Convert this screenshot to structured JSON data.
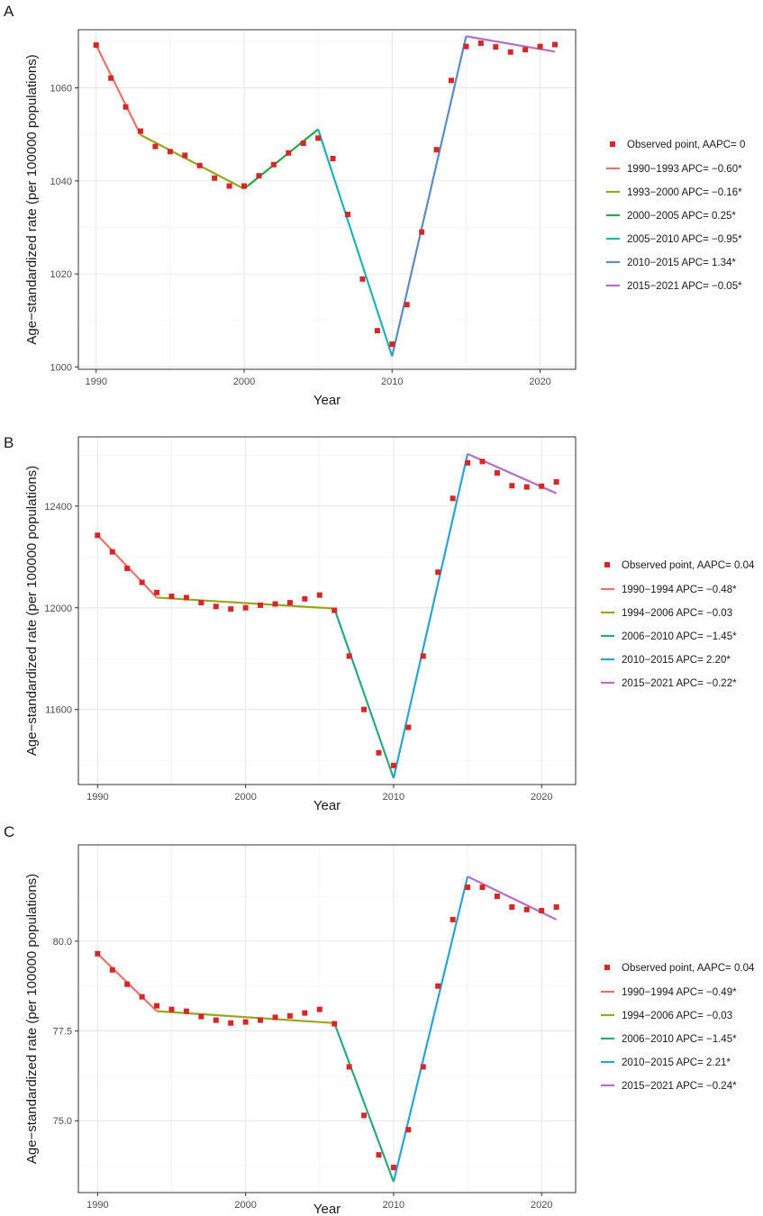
{
  "chart_data": [
    {
      "type": "line",
      "panel": "A",
      "xlabel": "Year",
      "ylabel": "Age−standardized rate (per 100000 populations)",
      "xlim": [
        1988.8,
        2022.4
      ],
      "ylim": [
        999.5,
        1072.5
      ],
      "xticks": [
        1990,
        2000,
        2010,
        2020
      ],
      "xtick_labels": [
        "1990",
        "2000",
        "2010",
        "2020"
      ],
      "yticks": [
        1000,
        1020,
        1040,
        1060
      ],
      "ytick_labels": [
        "1000",
        "1020",
        "1040",
        "1060"
      ],
      "observed": {
        "label": "Observed point, AAPC= 0",
        "color": "#d62728",
        "x": [
          1990,
          1991,
          1992,
          1993,
          1994,
          1995,
          1996,
          1997,
          1998,
          1999,
          2000,
          2001,
          2002,
          2003,
          2004,
          2005,
          2006,
          2007,
          2008,
          2009,
          2010,
          2011,
          2012,
          2013,
          2014,
          2015,
          2016,
          2017,
          2018,
          2019,
          2020,
          2021
        ],
        "y": [
          1069.2,
          1062.1,
          1055.9,
          1050.7,
          1047.4,
          1046.3,
          1045.5,
          1043.3,
          1040.6,
          1038.9,
          1038.9,
          1041.1,
          1043.5,
          1046.0,
          1048.1,
          1049.2,
          1044.8,
          1032.8,
          1018.9,
          1007.8,
          1004.9,
          1013.4,
          1029.0,
          1046.7,
          1061.6,
          1068.9,
          1069.6,
          1068.8,
          1067.7,
          1068.2,
          1068.9,
          1069.3
        ]
      },
      "series": [
        {
          "name": "1990−1993 APC= −0.60*",
          "color": "#e8736b",
          "x": [
            1990,
            1993
          ],
          "y": [
            1069.2,
            1049.9
          ]
        },
        {
          "name": "1993−2000 APC= −0.16*",
          "color": "#9aa521",
          "x": [
            1993,
            2000
          ],
          "y": [
            1049.9,
            1038.3
          ]
        },
        {
          "name": "2000−2005 APC= 0.25*",
          "color": "#2ca44b",
          "x": [
            2000,
            2005
          ],
          "y": [
            1038.3,
            1051.1
          ]
        },
        {
          "name": "2005−2010 APC= −0.95*",
          "color": "#20b3b3",
          "x": [
            2005,
            2010
          ],
          "y": [
            1051.1,
            1002.3
          ]
        },
        {
          "name": "2010−2015 APC= 1.34*",
          "color": "#5b8cc6",
          "x": [
            2010,
            2015
          ],
          "y": [
            1002.3,
            1071.1
          ]
        },
        {
          "name": "2015−2021 APC= −0.05*",
          "color": "#b470c4",
          "x": [
            2015,
            2021
          ],
          "y": [
            1071.1,
            1067.8
          ]
        }
      ]
    },
    {
      "type": "line",
      "panel": "B",
      "xlabel": "Year",
      "ylabel": "Age−standardized rate (per 100000 populations)",
      "xlim": [
        1988.7,
        2022.3
      ],
      "ylim": [
        11305,
        12672
      ],
      "xticks": [
        1990,
        2000,
        2010,
        2020
      ],
      "xtick_labels": [
        "1990",
        "2000",
        "2010",
        "2020"
      ],
      "yticks": [
        11600,
        12000,
        12400
      ],
      "ytick_labels": [
        "11600",
        "12000",
        "12400"
      ],
      "observed": {
        "label": "Observed point, AAPC= 0.04",
        "color": "#d62728",
        "x": [
          1990,
          1991,
          1992,
          1993,
          1994,
          1995,
          1996,
          1997,
          1998,
          1999,
          2000,
          2001,
          2002,
          2003,
          2004,
          2005,
          2006,
          2007,
          2008,
          2009,
          2010,
          2011,
          2012,
          2013,
          2014,
          2015,
          2016,
          2017,
          2018,
          2019,
          2020,
          2021
        ],
        "y": [
          12285,
          12220,
          12155,
          12100,
          12060,
          12045,
          12040,
          12020,
          12005,
          11995,
          12000,
          12010,
          12015,
          12020,
          12035,
          12050,
          11990,
          11810,
          11600,
          11430,
          11380,
          11530,
          11810,
          12140,
          12430,
          12570,
          12575,
          12530,
          12480,
          12475,
          12478,
          12495
        ]
      },
      "series": [
        {
          "name": "1990−1994 APC= −0.48*",
          "color": "#e8736b",
          "x": [
            1990,
            1994
          ],
          "y": [
            12285,
            12040
          ]
        },
        {
          "name": "1994−2006 APC= −0.03",
          "color": "#9aa521",
          "x": [
            1994,
            2006
          ],
          "y": [
            12040,
            11997
          ]
        },
        {
          "name": "2006−2010 APC= −1.45*",
          "color": "#28a97f",
          "x": [
            2006,
            2010
          ],
          "y": [
            11997,
            11330
          ]
        },
        {
          "name": "2010−2015 APC= 2.20*",
          "color": "#2aa3d6",
          "x": [
            2010,
            2015
          ],
          "y": [
            11330,
            12605
          ]
        },
        {
          "name": "2015−2021 APC= −0.22*",
          "color": "#b470c4",
          "x": [
            2015,
            2021
          ],
          "y": [
            12605,
            12450
          ]
        }
      ]
    },
    {
      "type": "line",
      "panel": "C",
      "xlabel": "Year",
      "ylabel": "Age−standardized rate (per 100000 populations)",
      "xlim": [
        1988.7,
        2022.3
      ],
      "ylim": [
        73.0,
        82.68
      ],
      "xticks": [
        1990,
        2000,
        2010,
        2020
      ],
      "xtick_labels": [
        "1990",
        "2000",
        "2010",
        "2020"
      ],
      "yticks": [
        75.0,
        77.5,
        80.0
      ],
      "ytick_labels": [
        "75.0",
        "77.5",
        "80.0"
      ],
      "observed": {
        "label": "Observed point, AAPC= 0.04",
        "color": "#d62728",
        "x": [
          1990,
          1991,
          1992,
          1993,
          1994,
          1995,
          1996,
          1997,
          1998,
          1999,
          2000,
          2001,
          2002,
          2003,
          2004,
          2005,
          2006,
          2007,
          2008,
          2009,
          2010,
          2011,
          2012,
          2013,
          2014,
          2015,
          2016,
          2017,
          2018,
          2019,
          2020,
          2021
        ],
        "y": [
          79.65,
          79.2,
          78.8,
          78.45,
          78.2,
          78.1,
          78.05,
          77.9,
          77.8,
          77.72,
          77.75,
          77.8,
          77.88,
          77.92,
          78.0,
          78.1,
          77.7,
          76.5,
          75.15,
          74.05,
          73.7,
          74.75,
          76.5,
          78.75,
          80.6,
          81.5,
          81.5,
          81.25,
          80.95,
          80.88,
          80.85,
          80.95
        ]
      },
      "series": [
        {
          "name": "1990−1994 APC= −0.49*",
          "color": "#e8736b",
          "x": [
            1990,
            1994
          ],
          "y": [
            79.65,
            78.05
          ]
        },
        {
          "name": "1994−2006 APC= −0.03",
          "color": "#9aa521",
          "x": [
            1994,
            2006
          ],
          "y": [
            78.05,
            77.72
          ]
        },
        {
          "name": "2006−2010 APC= −1.45*",
          "color": "#28a97f",
          "x": [
            2006,
            2010
          ],
          "y": [
            77.72,
            73.3
          ]
        },
        {
          "name": "2010−2015 APC= 2.21*",
          "color": "#2aa3d6",
          "x": [
            2010,
            2015
          ],
          "y": [
            73.3,
            81.8
          ]
        },
        {
          "name": "2015−2021 APC= −0.24*",
          "color": "#b470c4",
          "x": [
            2015,
            2021
          ],
          "y": [
            81.8,
            80.6
          ]
        }
      ]
    }
  ]
}
